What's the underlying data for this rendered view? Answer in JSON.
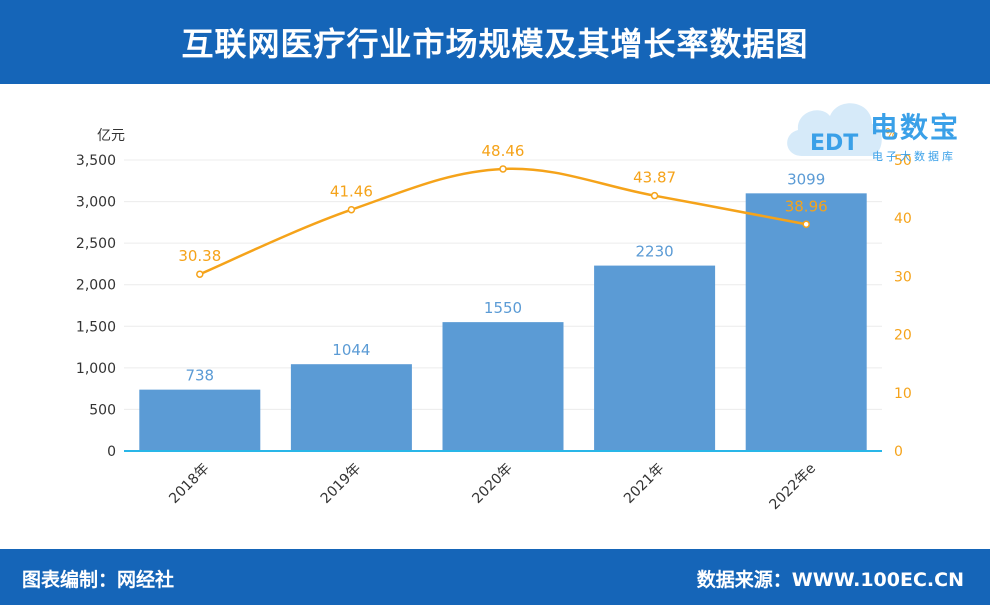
{
  "header": {
    "title": "互联网医疗行业市场规模及其增长率数据图"
  },
  "footer": {
    "left_text": "图表编制：网经社",
    "right_text": "数据来源：WWW.100EC.CN"
  },
  "watermark": {
    "brand": "电数宝",
    "sub": "电子大数据库",
    "logo_text": "EDT",
    "logo": "cloud-logo-icon"
  },
  "colors": {
    "header_bg": "#1565b8",
    "bar": "#5b9bd5",
    "line": "#f5a31a",
    "axis": "#29b6e8"
  },
  "chart_data": {
    "type": "bar",
    "categories": [
      "2018年",
      "2019年",
      "2020年",
      "2021年",
      "2022年e"
    ],
    "series": [
      {
        "type": "bar",
        "axis": "left",
        "values": [
          738,
          1044,
          1550,
          2230,
          3099
        ]
      },
      {
        "type": "line",
        "axis": "right",
        "values": [
          30.38,
          41.46,
          48.46,
          43.87,
          38.96
        ]
      }
    ],
    "y_left": {
      "unit": "亿元",
      "ylim": [
        0,
        3500
      ],
      "ticks": [
        "0",
        "500",
        "1,000",
        "1,500",
        "2,000",
        "2,500",
        "3,000",
        "3,500"
      ]
    },
    "y_right": {
      "unit": "%",
      "ylim": [
        0,
        50
      ],
      "ticks": [
        "0",
        "10",
        "20",
        "30",
        "40",
        "50"
      ]
    },
    "grid": true,
    "legend": "none"
  }
}
